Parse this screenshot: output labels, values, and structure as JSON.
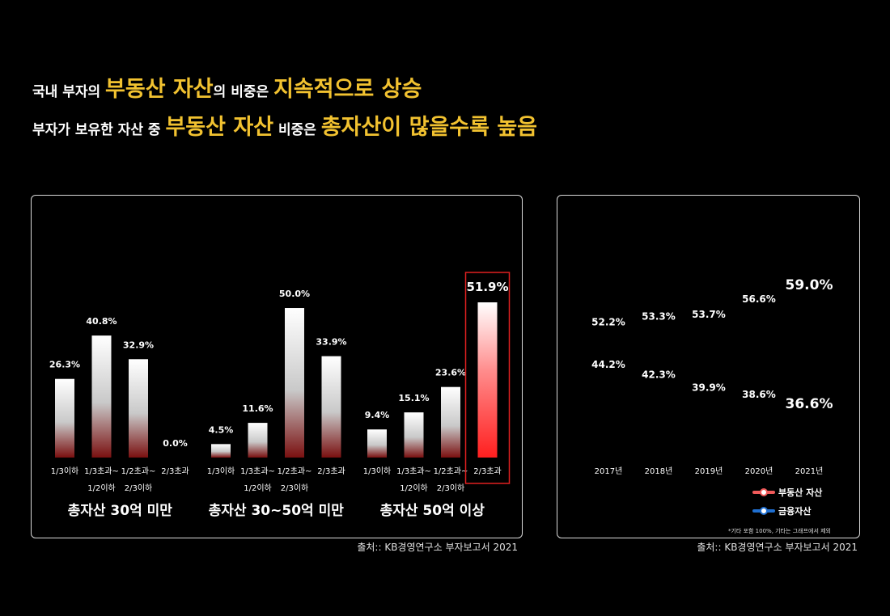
{
  "headline": {
    "line1": [
      {
        "text": "국내 부자의 ",
        "style": "w"
      },
      {
        "text": "부동산 자산",
        "style": "y"
      },
      {
        "text": "의 비중은 ",
        "style": "w"
      },
      {
        "text": "지속적으로 상승",
        "style": "y"
      }
    ],
    "line2": [
      {
        "text": "부자가 보유한 자산 중 ",
        "style": "w"
      },
      {
        "text": "부동산 자산",
        "style": "y"
      },
      {
        "text": " 비중은 ",
        "style": "w"
      },
      {
        "text": "총자산이 많을수록 높음",
        "style": "y"
      }
    ]
  },
  "chart_data": [
    {
      "type": "bar",
      "categories": [
        "1/3이하",
        "1/3초과~\n1/2이하",
        "1/2초과~\n2/3이하",
        "2/3초과"
      ],
      "groups": [
        {
          "name": "총자산 30억 미만",
          "values": [
            26.3,
            40.8,
            32.9,
            0.0
          ],
          "labels": [
            "26.3%",
            "40.8%",
            "32.9%",
            "0.0%"
          ]
        },
        {
          "name": "총자산 30~50억 미만",
          "values": [
            4.5,
            11.6,
            50.0,
            33.9
          ],
          "labels": [
            "4.5%",
            "11.6%",
            "50.0%",
            "33.9%"
          ]
        },
        {
          "name": "총자산 50억 이상",
          "values": [
            9.4,
            15.1,
            23.6,
            51.9
          ],
          "labels": [
            "9.4%",
            "15.1%",
            "23.6%",
            "51.9%"
          ],
          "highlight_index": 3
        }
      ],
      "bar_color": "#ffffff",
      "highlight_color": "#ff2a2a"
    },
    {
      "type": "line",
      "x": [
        "2017년",
        "2018년",
        "2019년",
        "2020년",
        "2021년"
      ],
      "series": [
        {
          "name": "부동산 자산",
          "values": [
            52.2,
            53.3,
            53.7,
            56.6,
            59.0
          ],
          "labels": [
            "52.2%",
            "53.3%",
            "53.7%",
            "56.6%",
            "59.0%"
          ],
          "color": "#f05a5a"
        },
        {
          "name": "금융자산",
          "values": [
            44.2,
            42.3,
            39.9,
            38.6,
            36.6
          ],
          "labels": [
            "44.2%",
            "42.3%",
            "39.9%",
            "38.6%",
            "36.6%"
          ],
          "color": "#1f6fd1"
        }
      ],
      "note": "*기타 포함 100%, 기타는 그래프에서 제외"
    }
  ],
  "source_left": "출처:: KB경영연구소 부자보고서 2021",
  "source_right": "출처:: KB경영연구소 부자보고서 2021"
}
